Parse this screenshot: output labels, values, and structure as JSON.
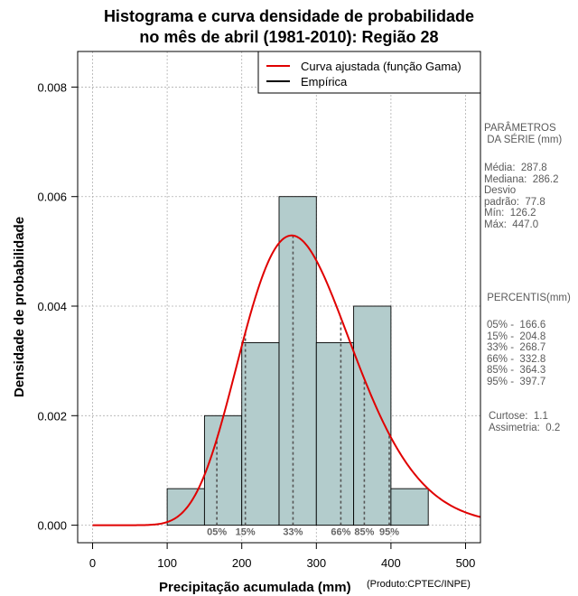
{
  "chart_data": {
    "type": "histogram",
    "title_line1": "Histograma e curva densidade de probabilidade",
    "title_line2": "no mês de abril (1981-2010): Região 28",
    "xlabel": "Precipitação acumulada (mm)",
    "ylabel": "Densidade de probabilidade",
    "credit": "(Produto:CPTEC/INPE)",
    "xlim": [
      -20,
      520
    ],
    "ylim": [
      -0.00032,
      0.00865
    ],
    "x_ticks": [
      0,
      100,
      200,
      300,
      400,
      500
    ],
    "y_ticks": [
      0.0,
      0.002,
      0.004,
      0.006,
      0.008
    ],
    "y_tick_labels": [
      "0.000",
      "0.002",
      "0.004",
      "0.006",
      "0.008"
    ],
    "grid": true,
    "bins": [
      {
        "start": 100,
        "end": 150,
        "density": 0.000667
      },
      {
        "start": 150,
        "end": 200,
        "density": 0.002
      },
      {
        "start": 200,
        "end": 250,
        "density": 0.003333
      },
      {
        "start": 250,
        "end": 300,
        "density": 0.006
      },
      {
        "start": 300,
        "end": 350,
        "density": 0.003333
      },
      {
        "start": 350,
        "end": 400,
        "density": 0.004
      },
      {
        "start": 400,
        "end": 450,
        "density": 0.000667
      }
    ],
    "gamma_fit": {
      "shape": 13.69,
      "scale": 21.03
    },
    "percentiles": [
      {
        "label": "05%",
        "value": 166.6
      },
      {
        "label": "15%",
        "value": 204.8
      },
      {
        "label": "33%",
        "value": 268.7
      },
      {
        "label": "66%",
        "value": 332.8
      },
      {
        "label": "85%",
        "value": 364.3
      },
      {
        "label": "95%",
        "value": 397.7
      }
    ],
    "legend": [
      {
        "label": "Curva ajustada (função Gama)",
        "color": "#e00000"
      },
      {
        "label": "Empírica",
        "color": "#000000"
      }
    ],
    "legend_position": "top-right",
    "colors": {
      "bar_fill": "#b3cccc",
      "curve": "#e00000",
      "grid": "#b0b0b0",
      "percentile": "#555555"
    }
  },
  "side_panel": {
    "params_title": "PARÂMETROS\n DA SÉRIE (mm)",
    "params_body": "Média:  287.8\nMediana:  286.2\nDesvio\npadrão:  77.8\nMín:  126.2\nMáx:  447.0",
    "perc_title": " PERCENTIS(mm)",
    "perc_body": "05% -  166.6\n15% -  204.8\n33% -  268.7\n66% -  332.8\n85% -  364.3\n95% -  397.7",
    "stats_body": "Curtose:  1.1\nAssimetria:  0.2"
  }
}
